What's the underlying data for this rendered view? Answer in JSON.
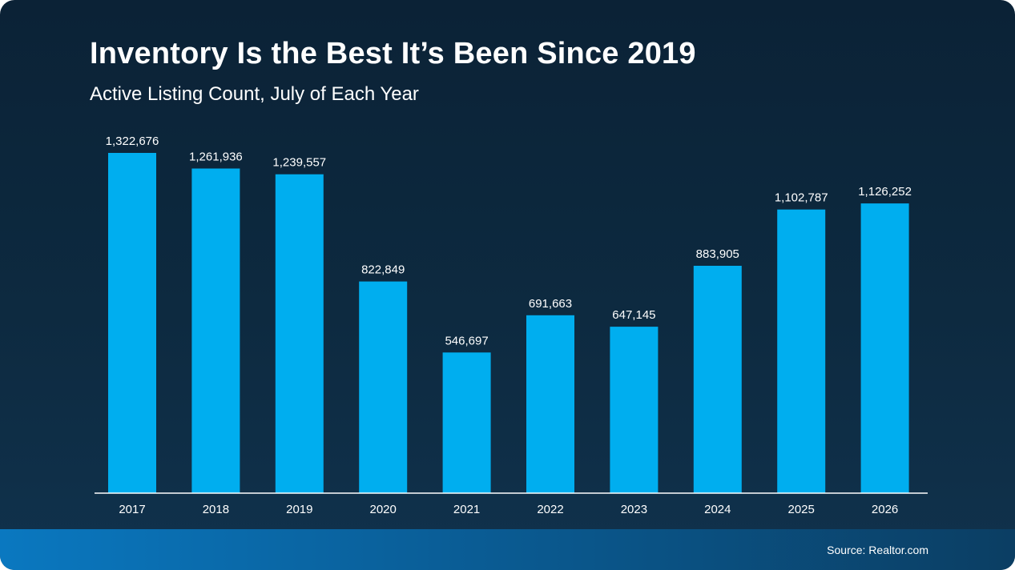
{
  "header": {
    "title": "Inventory Is the Best It’s Been Since 2019",
    "subtitle": "Active Listing Count, July of Each Year"
  },
  "footer": {
    "source": "Source: Realtor.com"
  },
  "colors": {
    "bar": "#00aeef",
    "axis": "#ffffff",
    "text": "#ffffff"
  },
  "chart_data": {
    "type": "bar",
    "title": "Inventory Is the Best It’s Been Since 2019",
    "subtitle": "Active Listing Count, July of Each Year",
    "xlabel": "",
    "ylabel": "",
    "categories": [
      "2017",
      "2018",
      "2019",
      "2020",
      "2021",
      "2022",
      "2023",
      "2024",
      "2025",
      "2026"
    ],
    "values": [
      1322676,
      1261936,
      1239557,
      822849,
      546697,
      691663,
      647145,
      883905,
      1102787,
      1126252
    ],
    "data_labels": [
      "1,322,676",
      "1,261,936",
      "1,239,557",
      "822,849",
      "546,697",
      "691,663",
      "647,145",
      "883,905",
      "1,102,787",
      "1,126,252"
    ],
    "ylim": [
      0,
      1400000
    ],
    "grid": false,
    "legend": "none"
  }
}
